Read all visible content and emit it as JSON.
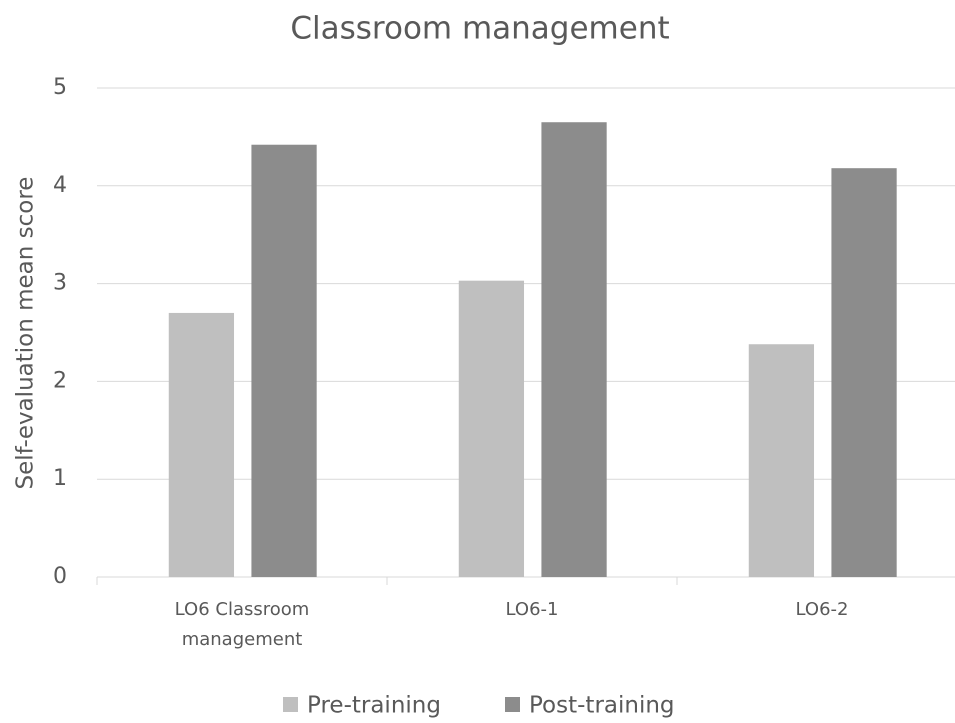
{
  "chart_data": {
    "type": "bar",
    "title": "Classroom management",
    "y_label": "Self-evaluation mean score",
    "categories": [
      "LO6 Classroom management",
      "LO6-1",
      "LO6-2"
    ],
    "series": [
      {
        "name": "Pre-training",
        "color": "#bfbfbf",
        "values": [
          2.7,
          3.03,
          2.38
        ]
      },
      {
        "name": "Post-training",
        "color": "#8c8c8c",
        "values": [
          4.42,
          4.65,
          4.18
        ]
      }
    ],
    "ylim": [
      0,
      5
    ],
    "yticks": [
      0,
      1,
      2,
      3,
      4,
      5
    ],
    "grid": true,
    "legend": "bottom"
  }
}
